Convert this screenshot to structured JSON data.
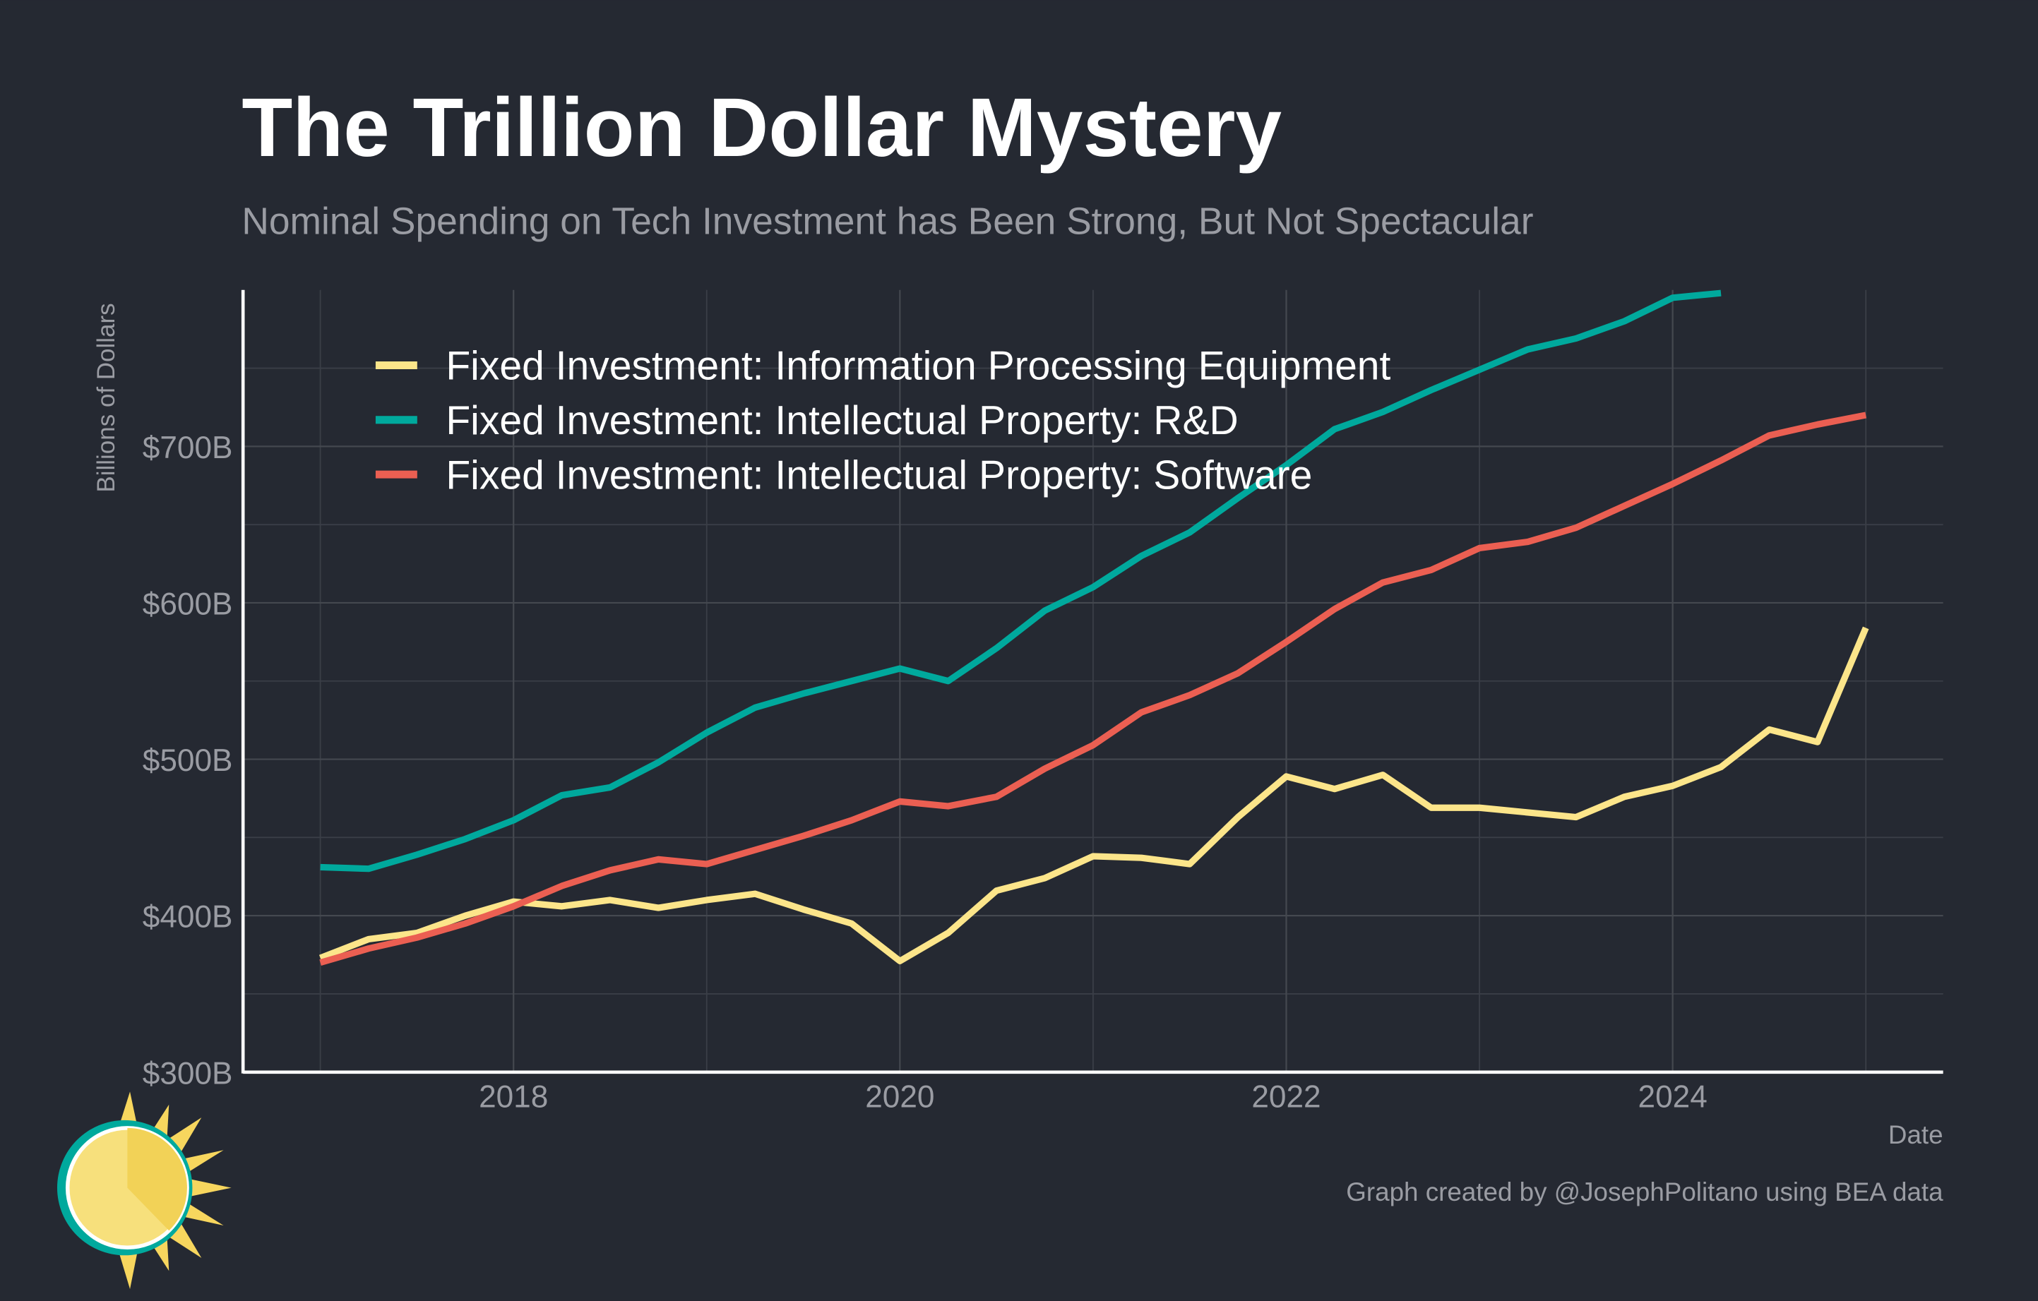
{
  "chart_data": {
    "type": "line",
    "title": "The Trillion Dollar Mystery",
    "subtitle": "Nominal Spending on Tech Investment has Been Strong, But Not Spectacular",
    "y_label": "Billions of Dollars",
    "x_label": "Date",
    "caption": "Graph created by @JosephPolitano using BEA data",
    "xlim": [
      2016.6,
      2025.4
    ],
    "xticks": [
      2018,
      2020,
      2022,
      2024
    ],
    "minor_xticks": [
      2017,
      2019,
      2021,
      2023,
      2025
    ],
    "ylim": [
      300,
      800
    ],
    "yticks": [
      {
        "value": 300,
        "label": "$300B"
      },
      {
        "value": 400,
        "label": "$400B"
      },
      {
        "value": 500,
        "label": "$500B"
      },
      {
        "value": 600,
        "label": "$600B"
      },
      {
        "value": 700,
        "label": "$700B"
      }
    ],
    "minor_yticks": [
      350,
      450,
      550,
      650,
      750
    ],
    "grid": true,
    "legend": "upper left",
    "series": [
      {
        "name": "Fixed Investment: Information Processing Equipment",
        "color": "#fce58a",
        "x": [
          2017,
          2017.25,
          2017.5,
          2017.75,
          2018,
          2018.25,
          2018.5,
          2018.75,
          2019,
          2019.25,
          2019.5,
          2019.75,
          2020,
          2020.25,
          2020.5,
          2020.75,
          2021,
          2021.25,
          2021.5,
          2021.75,
          2022,
          2022.25,
          2022.5,
          2022.75,
          2023,
          2023.25,
          2023.5,
          2023.75,
          2024,
          2024.25,
          2024.5,
          2024.75,
          2025
        ],
        "values": [
          373,
          385,
          389,
          400,
          409,
          406,
          410,
          405,
          410,
          414,
          404,
          395,
          371,
          389,
          416,
          424,
          438,
          437,
          433,
          463,
          489,
          481,
          490,
          469,
          469,
          466,
          463,
          476,
          483,
          495,
          519,
          511,
          584
        ]
      },
      {
        "name": "Fixed Investment: Intellectual Property: R&D",
        "color": "#00a99d",
        "x": [
          2017,
          2017.25,
          2017.5,
          2017.75,
          2018,
          2018.25,
          2018.5,
          2018.75,
          2019,
          2019.25,
          2019.5,
          2019.75,
          2020,
          2020.25,
          2020.5,
          2020.75,
          2021,
          2021.25,
          2021.5,
          2021.75,
          2022,
          2022.25,
          2022.5,
          2022.75,
          2023,
          2023.25,
          2023.5,
          2023.75,
          2024,
          2024.25
        ],
        "values": [
          431,
          430,
          439,
          449,
          461,
          477,
          482,
          498,
          517,
          533,
          542,
          550,
          558,
          550,
          571,
          595,
          610,
          630,
          645,
          667,
          688,
          711,
          722,
          736,
          749,
          762,
          769,
          780,
          795,
          798
        ]
      },
      {
        "name": "Fixed Investment: Intellectual Property: Software",
        "color": "#eb5f52",
        "x": [
          2017,
          2017.25,
          2017.5,
          2017.75,
          2018,
          2018.25,
          2018.5,
          2018.75,
          2019,
          2019.25,
          2019.5,
          2019.75,
          2020,
          2020.25,
          2020.5,
          2020.75,
          2021,
          2021.25,
          2021.5,
          2021.75,
          2022,
          2022.25,
          2022.5,
          2022.75,
          2023,
          2023.25,
          2023.5,
          2023.75,
          2024,
          2024.25,
          2024.5,
          2024.75,
          2025
        ],
        "values": [
          370,
          379,
          386,
          395,
          406,
          419,
          429,
          436,
          433,
          442,
          451,
          461,
          473,
          470,
          476,
          494,
          509,
          530,
          541,
          555,
          575,
          596,
          613,
          621,
          635,
          639,
          648,
          662,
          676,
          691,
          707,
          714,
          720
        ]
      }
    ]
  }
}
